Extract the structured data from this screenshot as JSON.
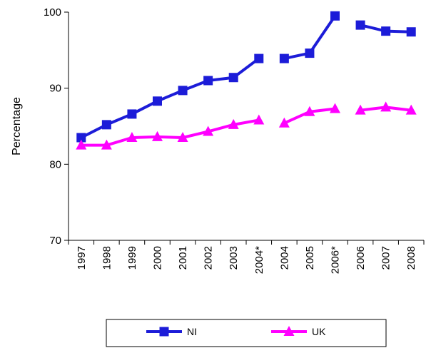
{
  "chart_data": {
    "type": "line",
    "categories": [
      "1997",
      "1998",
      "1999",
      "2000",
      "2001",
      "2002",
      "2003",
      "2004*",
      "2004",
      "2005",
      "2006*",
      "2006",
      "2007",
      "2008"
    ],
    "series": [
      {
        "name": "NI",
        "color": "#1c1cd8",
        "marker": "square",
        "values": [
          83.5,
          85.2,
          86.6,
          88.3,
          89.7,
          91.0,
          91.4,
          93.9,
          93.9,
          94.6,
          99.5,
          98.3,
          97.5,
          97.4
        ],
        "breaks_after": [
          "2004*",
          "2006*"
        ]
      },
      {
        "name": "UK",
        "color": "#ff00ff",
        "marker": "triangle",
        "values": [
          82.5,
          82.5,
          83.5,
          83.6,
          83.5,
          84.3,
          85.2,
          85.8,
          85.4,
          86.9,
          87.3,
          87.1,
          87.5,
          87.1
        ],
        "breaks_after": [
          "2004*",
          "2006*"
        ]
      }
    ],
    "ylabel": "Percentage",
    "xlabel": "",
    "title": "",
    "ylim": [
      70,
      100
    ],
    "yticks": [
      70,
      80,
      90,
      100
    ],
    "grid": false,
    "legend_position": "bottom"
  }
}
